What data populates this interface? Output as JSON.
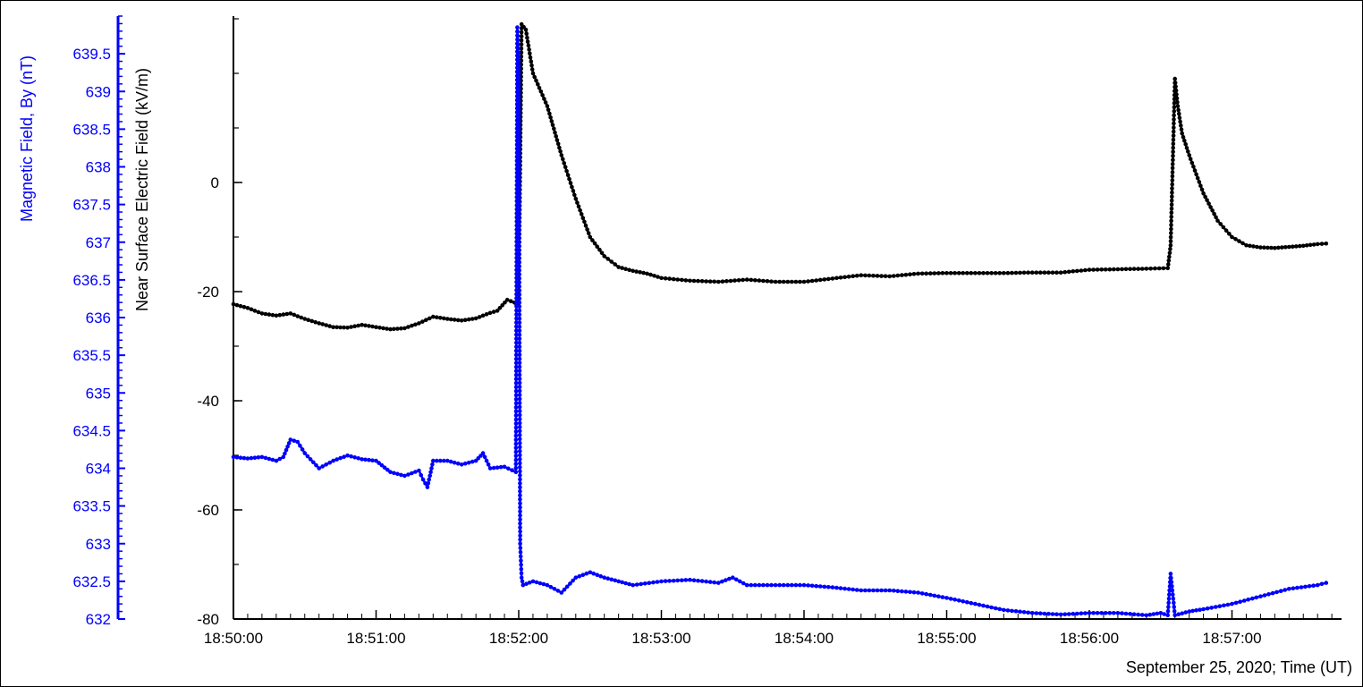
{
  "chart_data": {
    "type": "line",
    "title": "",
    "xlabel": "September 25, 2020; Time (UT)",
    "x_unit": "minutes after 18:50:00 UT",
    "xlim": [
      0,
      7.7
    ],
    "x_ticks": [
      {
        "value": 0,
        "label": "18:50:00"
      },
      {
        "value": 1,
        "label": "18:51:00"
      },
      {
        "value": 2,
        "label": "18:52:00"
      },
      {
        "value": 3,
        "label": "18:53:00"
      },
      {
        "value": 4,
        "label": "18:54:00"
      },
      {
        "value": 5,
        "label": "18:55:00"
      },
      {
        "value": 6,
        "label": "18:56:00"
      },
      {
        "value": 7,
        "label": "18:57:00"
      }
    ],
    "left_axis": {
      "label": "Magnetic Field, By (nT)",
      "color": "#0000ff",
      "ylim": [
        632,
        640
      ],
      "ticks": [
        "632",
        "632.5",
        "633",
        "633.5",
        "634",
        "634.5",
        "635",
        "635.5",
        "636",
        "636.5",
        "637",
        "637.5",
        "638",
        "638.5",
        "639",
        "639.5"
      ]
    },
    "right_axis": {
      "label": "Near Surface Electric Field (kV/m)",
      "color": "#000000",
      "ylim": [
        -80,
        30
      ],
      "ticks": [
        "-80",
        "-60",
        "-40",
        "-20",
        "0"
      ]
    },
    "grid": false,
    "legend": "none",
    "series": [
      {
        "axis": "electric",
        "color": "#000000",
        "x": [
          0.0,
          0.1,
          0.2,
          0.3,
          0.4,
          0.5,
          0.6,
          0.7,
          0.8,
          0.9,
          1.0,
          1.1,
          1.2,
          1.3,
          1.4,
          1.5,
          1.6,
          1.7,
          1.8,
          1.85,
          1.92,
          1.97,
          1.985,
          2.0,
          2.02,
          2.05,
          2.1,
          2.2,
          2.3,
          2.4,
          2.5,
          2.6,
          2.7,
          2.8,
          2.9,
          3.0,
          3.2,
          3.4,
          3.6,
          3.8,
          4.0,
          4.2,
          4.4,
          4.6,
          4.8,
          5.0,
          5.2,
          5.4,
          5.6,
          5.8,
          6.0,
          6.2,
          6.4,
          6.55,
          6.57,
          6.6,
          6.62,
          6.65,
          6.7,
          6.8,
          6.9,
          7.0,
          7.1,
          7.2,
          7.3,
          7.4,
          7.5,
          7.6,
          7.66
        ],
        "y": [
          -22.3,
          -23.0,
          -24.0,
          -24.4,
          -24.0,
          -25.0,
          -25.8,
          -26.5,
          -26.6,
          -26.1,
          -26.5,
          -26.9,
          -26.7,
          -25.8,
          -24.6,
          -25.0,
          -25.3,
          -24.9,
          -23.9,
          -23.5,
          -21.5,
          -22.0,
          -22.5,
          -22.0,
          29.0,
          28.0,
          20.0,
          14.0,
          5.0,
          -3.0,
          -10.0,
          -13.5,
          -15.5,
          -16.2,
          -16.7,
          -17.5,
          -18.0,
          -18.2,
          -17.8,
          -18.2,
          -18.2,
          -17.6,
          -17.0,
          -17.2,
          -16.7,
          -16.6,
          -16.6,
          -16.6,
          -16.5,
          -16.5,
          -16.0,
          -15.9,
          -15.8,
          -15.7,
          -11.5,
          19.0,
          14.0,
          9.0,
          5.0,
          -2.0,
          -7.0,
          -10.0,
          -11.5,
          -11.9,
          -12.0,
          -11.8,
          -11.6,
          -11.3,
          -11.2
        ]
      },
      {
        "axis": "magnetic",
        "color": "#0000ff",
        "x": [
          0.0,
          0.1,
          0.2,
          0.3,
          0.35,
          0.4,
          0.45,
          0.5,
          0.6,
          0.7,
          0.8,
          0.9,
          1.0,
          1.1,
          1.2,
          1.3,
          1.33,
          1.36,
          1.4,
          1.5,
          1.6,
          1.7,
          1.75,
          1.8,
          1.9,
          1.98,
          1.99,
          2.0,
          2.01,
          2.02,
          2.03,
          2.1,
          2.2,
          2.3,
          2.4,
          2.5,
          2.6,
          2.7,
          2.8,
          3.0,
          3.2,
          3.4,
          3.5,
          3.6,
          3.8,
          4.0,
          4.2,
          4.4,
          4.6,
          4.8,
          5.0,
          5.2,
          5.4,
          5.6,
          5.8,
          6.0,
          6.2,
          6.4,
          6.5,
          6.55,
          6.57,
          6.6,
          6.7,
          6.8,
          7.0,
          7.2,
          7.4,
          7.6,
          7.66
        ],
        "y": [
          634.15,
          634.13,
          634.15,
          634.1,
          634.15,
          634.38,
          634.35,
          634.2,
          634.0,
          634.1,
          634.17,
          634.12,
          634.1,
          633.95,
          633.9,
          633.97,
          633.85,
          633.75,
          634.1,
          634.1,
          634.05,
          634.1,
          634.2,
          634.0,
          634.02,
          633.95,
          639.85,
          639.4,
          633.0,
          632.55,
          632.45,
          632.5,
          632.45,
          632.35,
          632.55,
          632.62,
          632.55,
          632.5,
          632.45,
          632.5,
          632.52,
          632.48,
          632.55,
          632.45,
          632.45,
          632.45,
          632.42,
          632.38,
          632.38,
          632.35,
          632.28,
          632.2,
          632.12,
          632.08,
          632.06,
          632.08,
          632.08,
          632.05,
          632.08,
          632.05,
          632.6,
          632.05,
          632.1,
          632.13,
          632.2,
          632.3,
          632.4,
          632.45,
          632.48
        ]
      }
    ]
  }
}
